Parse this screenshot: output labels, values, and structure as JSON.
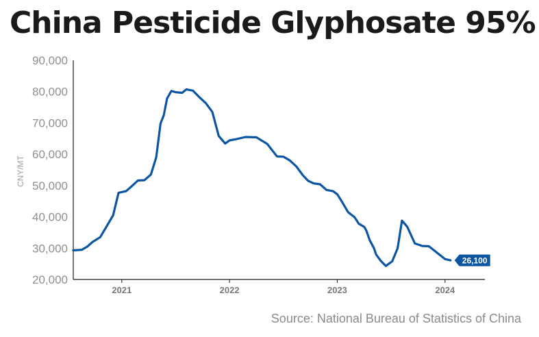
{
  "title": "China Pesticide Glyphosate 95%",
  "source": "Source: National Bureau of Statistics of China",
  "colors": {
    "line": "#0b55a3",
    "axis": "#1a1a1a",
    "tick_text": "#8f8f8f",
    "label_bg": "#0b55a3"
  },
  "chart_data": {
    "type": "line",
    "title": "China Pesticide Glyphosate 95%",
    "ylabel": "CNY/MT",
    "xlabel": "",
    "ylim": [
      20000,
      90000
    ],
    "xlim": [
      2020.55,
      2024.37
    ],
    "grid": false,
    "yticks": [
      {
        "value": 20000,
        "label": "20,000"
      },
      {
        "value": 30000,
        "label": "30,000"
      },
      {
        "value": 40000,
        "label": "40,000"
      },
      {
        "value": 50000,
        "label": "50,000"
      },
      {
        "value": 60000,
        "label": "60,000"
      },
      {
        "value": 70000,
        "label": "70,000"
      },
      {
        "value": 80000,
        "label": "80,000"
      },
      {
        "value": 90000,
        "label": "90,000"
      }
    ],
    "xticks": [
      {
        "value": 2021,
        "label": "2021"
      },
      {
        "value": 2022,
        "label": "2022"
      },
      {
        "value": 2023,
        "label": "2023"
      },
      {
        "value": 2024,
        "label": "2024"
      }
    ],
    "end_label": "26,100",
    "series": [
      {
        "x": [
          2020.55,
          2020.63,
          2020.68,
          2020.73,
          2020.8,
          2020.86,
          2020.92,
          2020.97,
          2021.04,
          2021.09,
          2021.15,
          2021.21,
          2021.27,
          2021.32,
          2021.36,
          2021.39,
          2021.42,
          2021.46,
          2021.5,
          2021.56,
          2021.6,
          2021.66,
          2021.72,
          2021.78,
          2021.84,
          2021.9,
          2021.96,
          2022.0,
          2022.06,
          2022.15,
          2022.25,
          2022.35,
          2022.44,
          2022.5,
          2022.56,
          2022.62,
          2022.68,
          2022.73,
          2022.78,
          2022.84,
          2022.9,
          2022.96,
          2023.0,
          2023.04,
          2023.1,
          2023.16,
          2023.2,
          2023.25,
          2023.27,
          2023.3,
          2023.34,
          2023.36,
          2023.4,
          2023.45,
          2023.51,
          2023.56,
          2023.6,
          2023.65,
          2023.72,
          2023.79,
          2023.85,
          2023.92,
          2024.0,
          2024.05
        ],
        "y": [
          29300,
          29500,
          30500,
          32000,
          33500,
          37000,
          40500,
          47700,
          48200,
          49700,
          51600,
          51700,
          53500,
          59000,
          69800,
          72500,
          77800,
          80200,
          79800,
          79600,
          80700,
          80300,
          78200,
          76300,
          73500,
          65800,
          63400,
          64400,
          64800,
          65500,
          65400,
          63300,
          59300,
          59200,
          58000,
          56100,
          53300,
          51500,
          50700,
          50400,
          48600,
          48200,
          47200,
          45000,
          41500,
          39900,
          37800,
          36800,
          35600,
          32600,
          30000,
          28000,
          26100,
          24300,
          25800,
          30000,
          38800,
          36800,
          31500,
          30700,
          30600,
          28700,
          26500,
          26100
        ]
      }
    ]
  }
}
